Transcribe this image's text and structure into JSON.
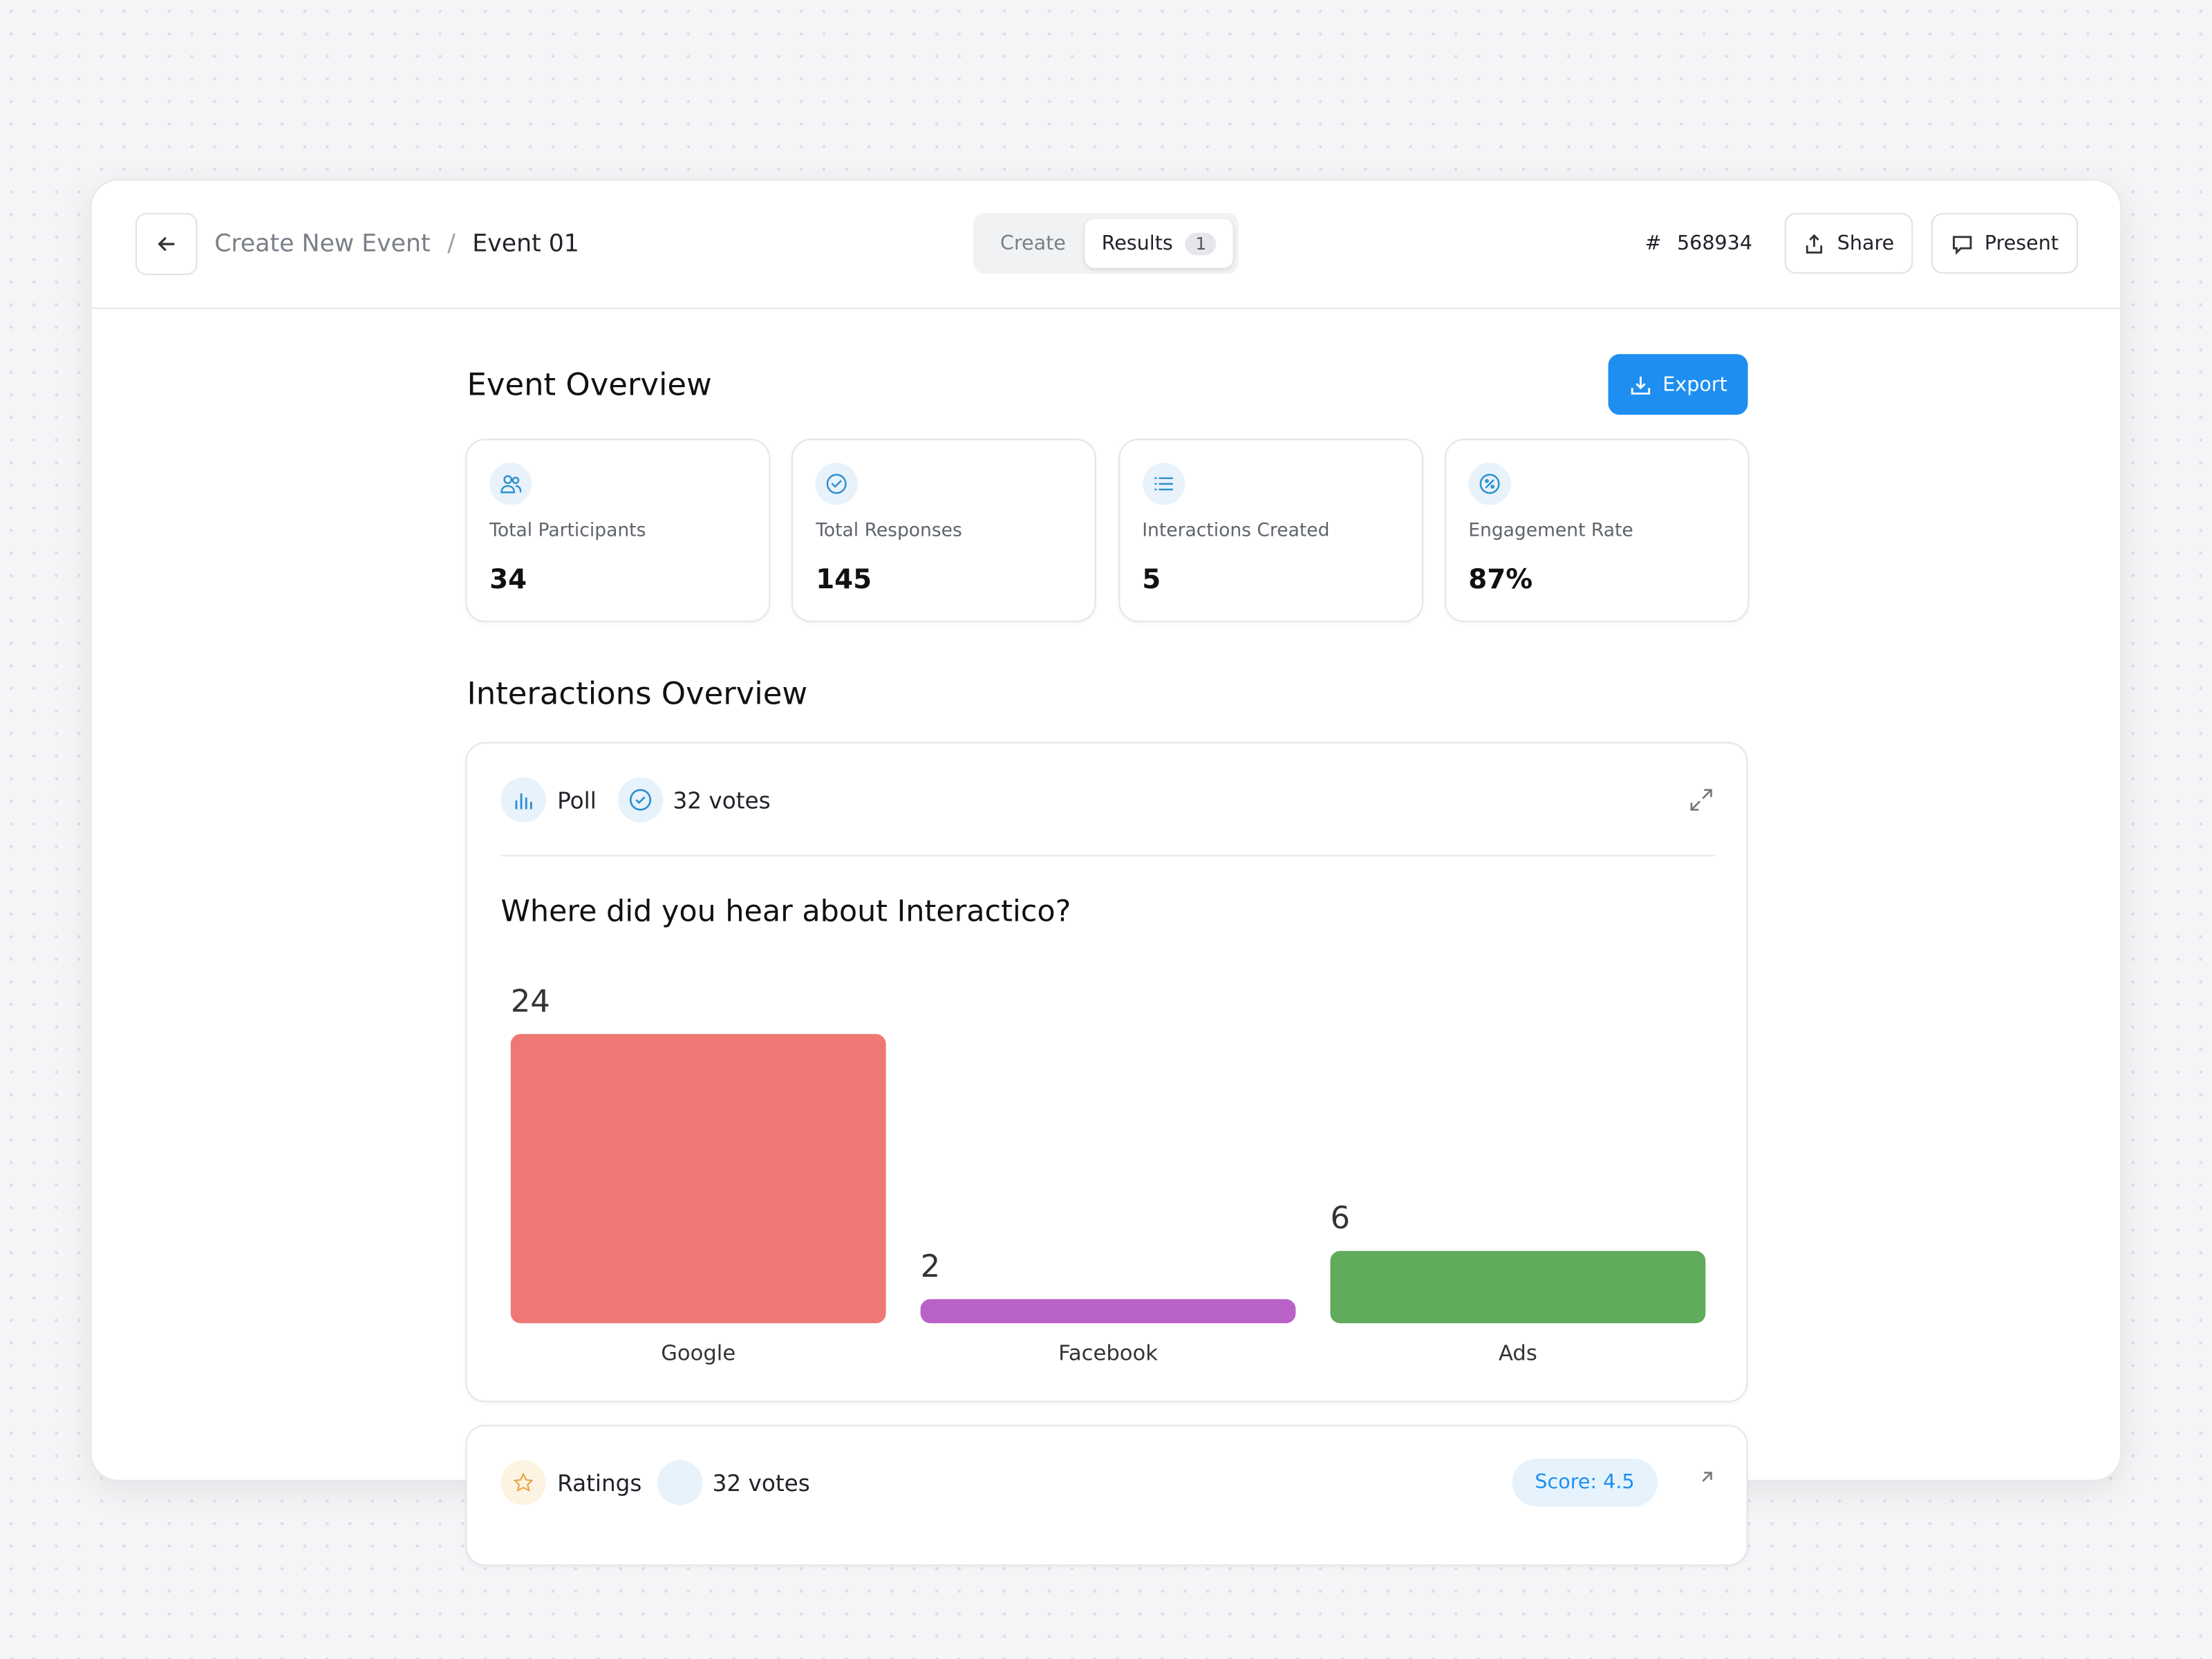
{
  "header": {
    "breadcrumb": [
      "Create New Event",
      "Event 01"
    ],
    "breadcrumb_separator": "/",
    "tabs": [
      {
        "label": "Create"
      },
      {
        "label": "Results",
        "badge": "1"
      }
    ],
    "event_code_prefix": "#",
    "event_code": "568934",
    "buttons": [
      "Share",
      "Present"
    ]
  },
  "overview": {
    "title": "Event Overview",
    "export": "Export",
    "stats": [
      {
        "label": "Total Participants",
        "value": "34"
      },
      {
        "label": "Total Responses",
        "value": "145"
      },
      {
        "label": "Interactions Created",
        "value": "5"
      },
      {
        "label": "Engagement Rate",
        "value": "87%"
      }
    ]
  },
  "interactions": {
    "title": "Interactions Overview",
    "cards": [
      {
        "type": "Poll",
        "votes": "32 votes",
        "chart_data": {
          "type": "bar",
          "title": "Where did you hear about Interactico?",
          "categories": [
            "Google",
            "Facebook",
            "Ads"
          ],
          "values": [
            24,
            2,
            6
          ],
          "colors": [
            "#ef7875",
            "#b862c8",
            "#60ab5c"
          ]
        }
      },
      {
        "type": "Ratings",
        "votes": "32 votes",
        "score": "Score: 4.5"
      }
    ]
  }
}
